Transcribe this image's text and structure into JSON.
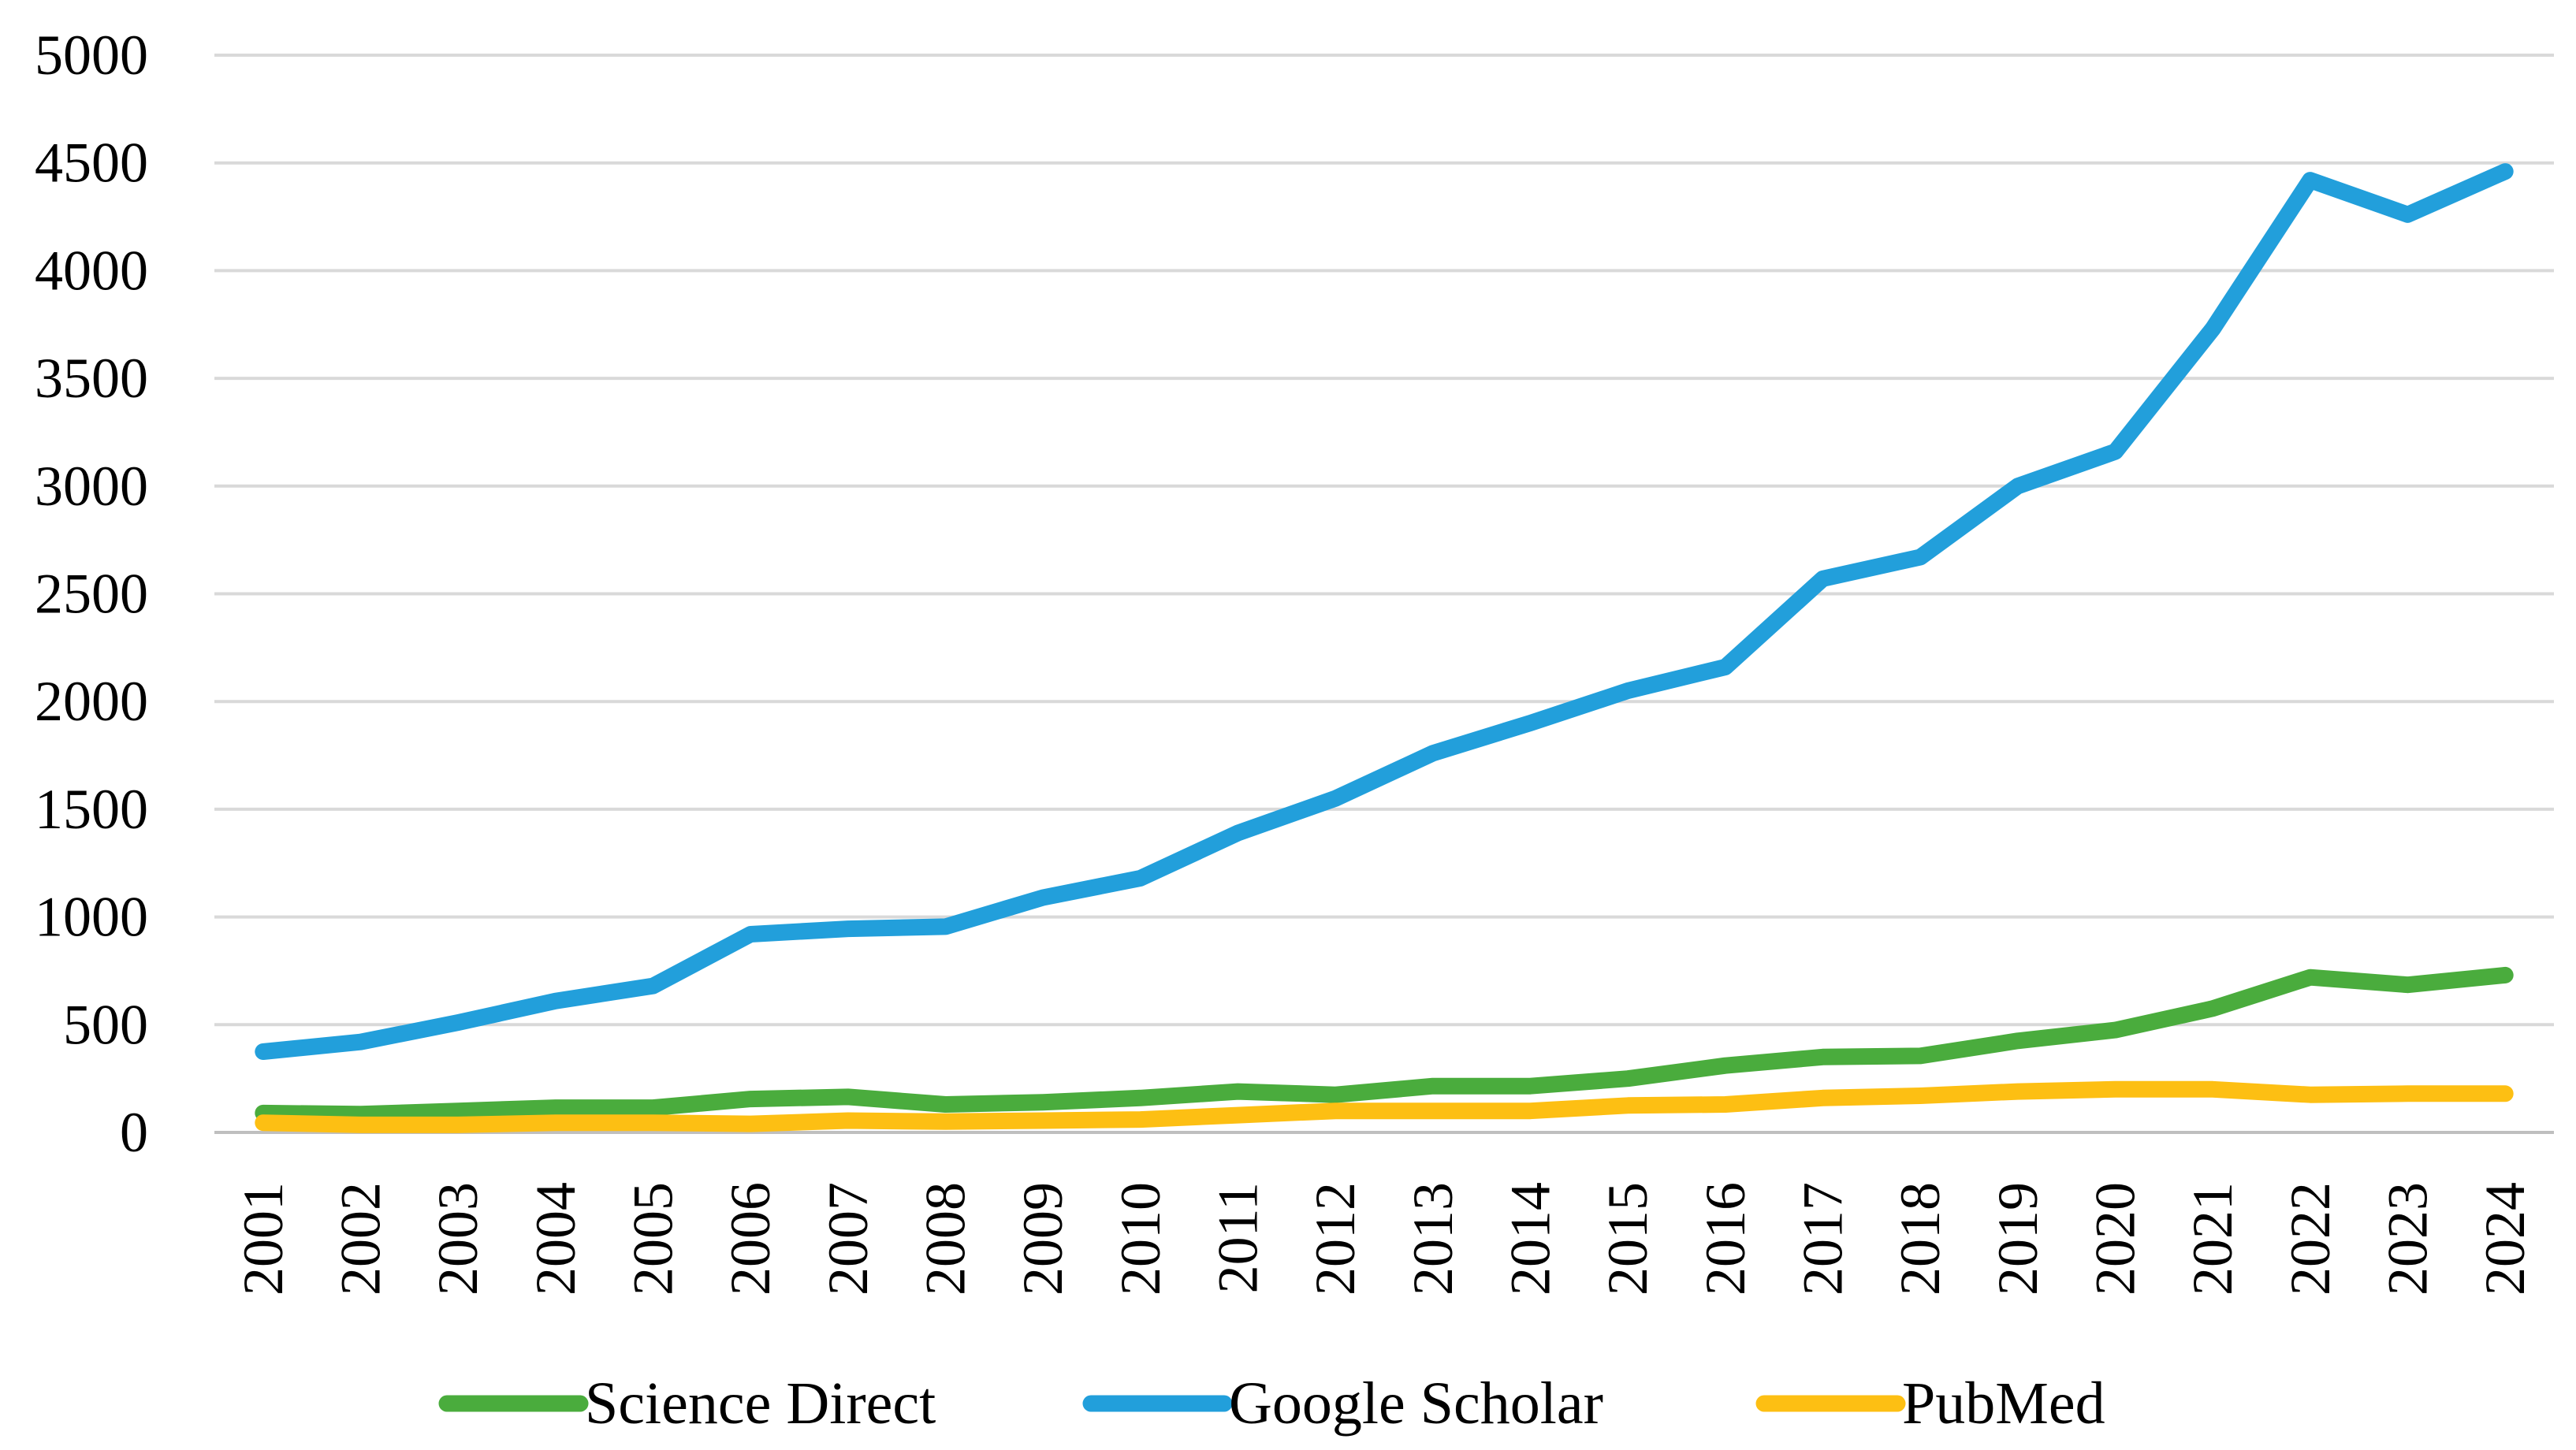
{
  "chart_data": {
    "type": "line",
    "title": "",
    "xlabel": "",
    "ylabel": "",
    "ylim": [
      0,
      5000
    ],
    "yticks": [
      0,
      500,
      1000,
      1500,
      2000,
      2500,
      3000,
      3500,
      4000,
      4500,
      5000
    ],
    "grid": true,
    "legend_position": "bottom",
    "categories": [
      "2001",
      "2002",
      "2003",
      "2004",
      "2005",
      "2006",
      "2007",
      "2008",
      "2009",
      "2010",
      "2011",
      "2012",
      "2013",
      "2014",
      "2015",
      "2016",
      "2017",
      "2018",
      "2019",
      "2020",
      "2021",
      "2022",
      "2023",
      "2024"
    ],
    "series": [
      {
        "name": "Science Direct",
        "color": "#4aac3d",
        "values": [
          90,
          85,
          100,
          115,
          115,
          155,
          165,
          130,
          140,
          160,
          190,
          175,
          215,
          215,
          250,
          310,
          350,
          355,
          425,
          475,
          575,
          720,
          685,
          730
        ]
      },
      {
        "name": "Google Scholar",
        "color": "#229fdb",
        "values": [
          375,
          420,
          510,
          610,
          680,
          920,
          945,
          955,
          1090,
          1180,
          1390,
          1550,
          1760,
          1900,
          2050,
          2160,
          2570,
          2670,
          3000,
          3160,
          3730,
          4420,
          4260,
          4460
        ]
      },
      {
        "name": "PubMed",
        "color": "#fdbf13",
        "values": [
          45,
          35,
          35,
          45,
          45,
          40,
          55,
          50,
          55,
          60,
          80,
          100,
          100,
          100,
          125,
          130,
          160,
          170,
          190,
          200,
          200,
          175,
          180,
          180
        ]
      }
    ]
  }
}
